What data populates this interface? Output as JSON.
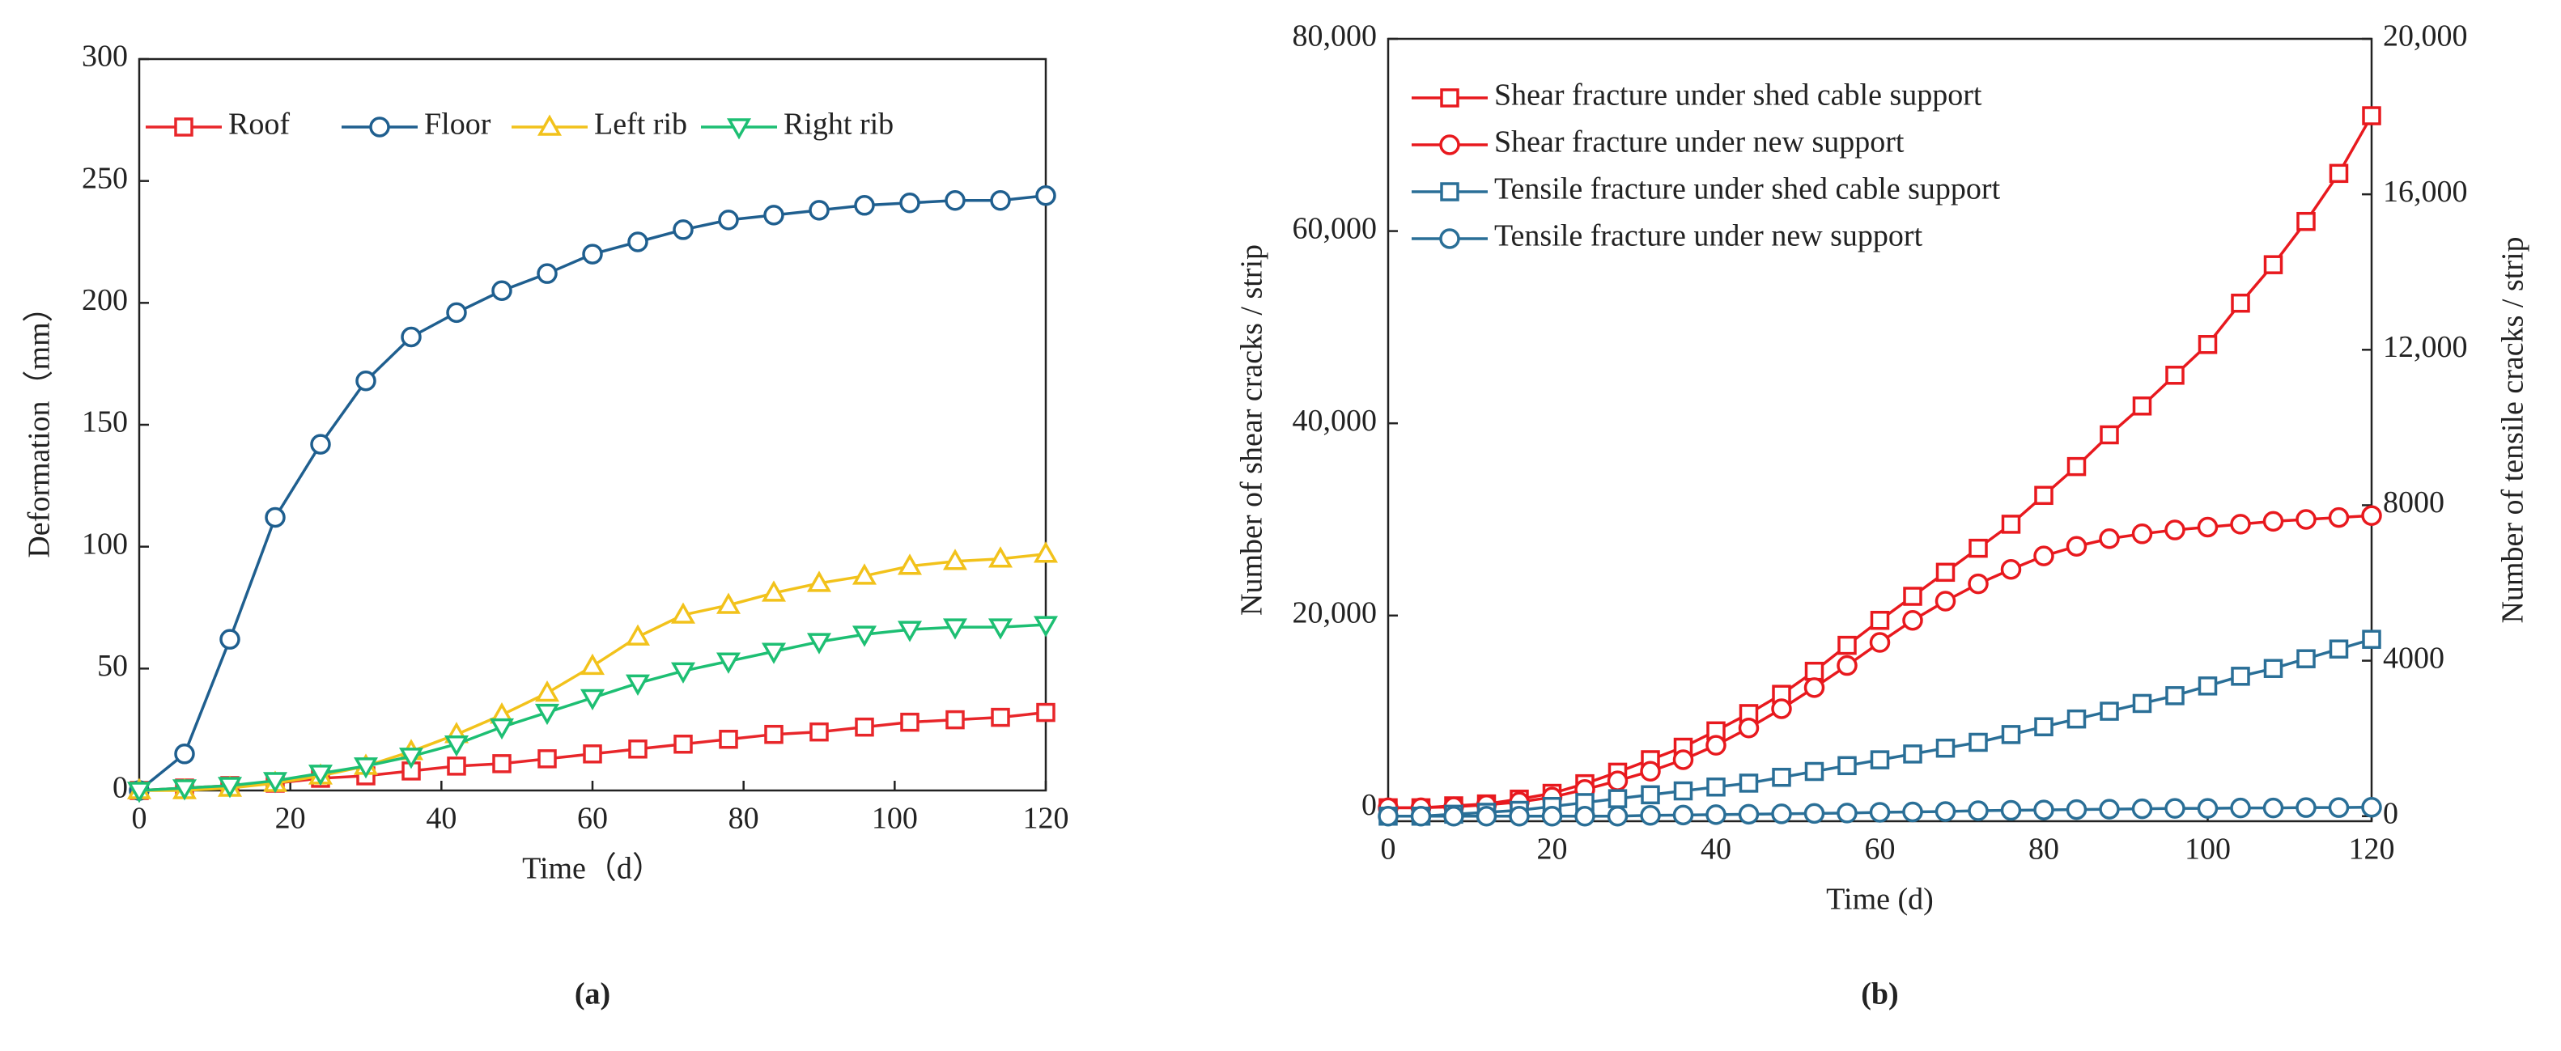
{
  "chart_data": [
    {
      "type": "line",
      "panel_label": "(a)",
      "xlabel": "Time（d）",
      "ylabel": "Deformation（mm）",
      "x": [
        0,
        6,
        12,
        18,
        24,
        30,
        36,
        42,
        48,
        54,
        60,
        66,
        72,
        78,
        84,
        90,
        96,
        102,
        108,
        114,
        120
      ],
      "xlim": [
        0,
        120
      ],
      "xticks": [
        0,
        20,
        40,
        60,
        80,
        100,
        120
      ],
      "ylim": [
        0,
        300
      ],
      "yticks": [
        0,
        50,
        100,
        150,
        200,
        250,
        300
      ],
      "series": [
        {
          "name": "Roof",
          "color": "#e8262a",
          "marker": "square",
          "values": [
            0,
            1,
            2,
            3,
            5,
            6,
            8,
            10,
            11,
            13,
            15,
            17,
            19,
            21,
            23,
            24,
            26,
            28,
            29,
            30,
            32
          ]
        },
        {
          "name": "Floor",
          "color": "#1f5f8f",
          "marker": "circle",
          "values": [
            0,
            15,
            62,
            112,
            142,
            168,
            186,
            196,
            205,
            212,
            220,
            225,
            230,
            234,
            236,
            238,
            240,
            241,
            242,
            242,
            244
          ]
        },
        {
          "name": "Left rib",
          "color": "#f2c21b",
          "marker": "triangle-up",
          "values": [
            0,
            0,
            1,
            3,
            6,
            10,
            16,
            23,
            31,
            40,
            51,
            63,
            72,
            76,
            81,
            85,
            88,
            92,
            94,
            95,
            97
          ]
        },
        {
          "name": "Right rib",
          "color": "#1dbf73",
          "marker": "triangle-down",
          "values": [
            0,
            1,
            2,
            4,
            7,
            10,
            14,
            19,
            26,
            32,
            38,
            44,
            49,
            53,
            57,
            61,
            64,
            66,
            67,
            67,
            68
          ]
        }
      ]
    },
    {
      "type": "line",
      "panel_label": "(b)",
      "xlabel": "Time (d)",
      "ylabel": "Number of shear cracks / strip",
      "y2label": "Number of tensile cracks / strip",
      "x": [
        0,
        4,
        8,
        12,
        16,
        20,
        24,
        28,
        32,
        36,
        40,
        44,
        48,
        52,
        56,
        60,
        64,
        68,
        72,
        76,
        80,
        84,
        88,
        92,
        96,
        100,
        104,
        108,
        112,
        116,
        120
      ],
      "xlim": [
        0,
        120
      ],
      "xticks": [
        0,
        20,
        40,
        60,
        80,
        100,
        120
      ],
      "ylim": [
        -1400,
        80000
      ],
      "yticks": [
        0,
        {
          "value": 20000,
          "label": "20,000"
        },
        {
          "value": 40000,
          "label": "40,000"
        },
        {
          "value": 60000,
          "label": "60,000"
        },
        {
          "value": 80000,
          "label": "80,000"
        }
      ],
      "y2lim": [
        -130,
        20000
      ],
      "y2ticks": [
        0,
        4000,
        8000,
        {
          "value": 12000,
          "label": "12,000"
        },
        {
          "value": 16000,
          "label": "16,000"
        },
        {
          "value": 20000,
          "label": "20,000"
        }
      ],
      "ycolor": "#e8191e",
      "y2color": "#2a6f97",
      "series": [
        {
          "name": "Shear fracture under shed cable support",
          "color": "#e8191e",
          "marker": "square",
          "values": [
            0,
            0,
            200,
            400,
            900,
            1500,
            2500,
            3700,
            5000,
            6300,
            8000,
            9800,
            11800,
            14200,
            16900,
            19500,
            22000,
            24500,
            27000,
            29500,
            32500,
            35500,
            38800,
            41800,
            45000,
            48200,
            52500,
            56500,
            61000,
            66000,
            72000
          ]
        },
        {
          "name": "Shear fracture under new support",
          "color": "#e8191e",
          "marker": "circle",
          "values": [
            0,
            0,
            100,
            300,
            600,
            1100,
            1900,
            2800,
            3800,
            5000,
            6500,
            8300,
            10300,
            12500,
            14800,
            17200,
            19500,
            21500,
            23300,
            24800,
            26200,
            27200,
            28000,
            28500,
            28900,
            29200,
            29500,
            29800,
            30000,
            30200,
            30400
          ]
        },
        {
          "name": "Tensile fracture under shed cable support",
          "color": "#2a6f97",
          "marker": "square",
          "axis": "y2",
          "values": [
            0,
            0,
            50,
            100,
            150,
            250,
            350,
            450,
            550,
            650,
            750,
            850,
            1000,
            1150,
            1300,
            1450,
            1600,
            1750,
            1900,
            2100,
            2300,
            2500,
            2700,
            2900,
            3100,
            3350,
            3600,
            3800,
            4050,
            4300,
            4550
          ]
        },
        {
          "name": "Tensile fracture under new support",
          "color": "#2a6f97",
          "marker": "circle",
          "axis": "y2",
          "values": [
            0,
            0,
            0,
            0,
            0,
            0,
            0,
            0,
            20,
            30,
            40,
            50,
            60,
            70,
            80,
            100,
            110,
            120,
            140,
            150,
            160,
            170,
            180,
            190,
            200,
            200,
            210,
            210,
            220,
            220,
            230
          ]
        }
      ]
    }
  ]
}
